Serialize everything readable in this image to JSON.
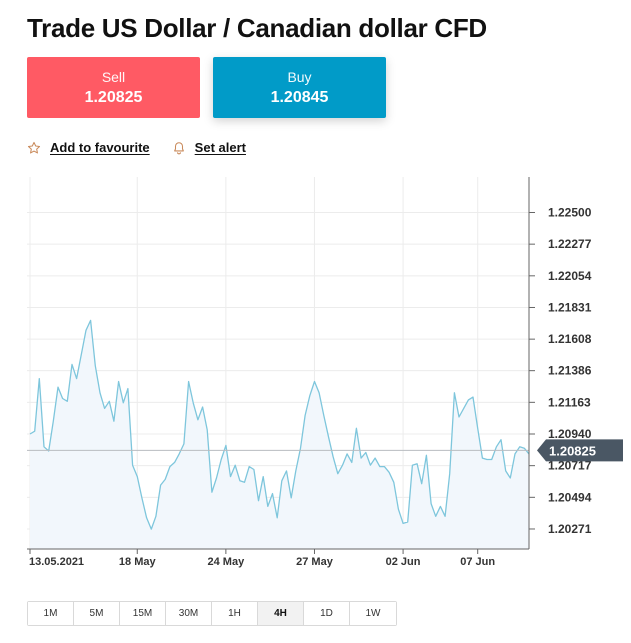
{
  "header": {
    "title": "Trade US Dollar / Canadian dollar CFD"
  },
  "trade": {
    "sell": {
      "label": "Sell",
      "price": "1.20825",
      "color": "#ff5a64"
    },
    "buy": {
      "label": "Buy",
      "price": "1.20845",
      "color": "#019bc8"
    }
  },
  "actions": {
    "favourite_label": "Add to favourite",
    "favourite_icon": "star-icon",
    "alert_label": "Set alert",
    "alert_icon": "bell-icon"
  },
  "timeframes": {
    "items": [
      "1M",
      "5M",
      "15M",
      "30M",
      "1H",
      "4H",
      "1D",
      "1W"
    ],
    "active": "4H"
  },
  "chart_data": {
    "type": "area",
    "line_color": "#7ec6dc",
    "fill_color": "#f2f7fc",
    "current_price": 1.20825,
    "current_price_label": "1.20825",
    "current_price_tag_color": "#4a5764",
    "ylim": [
      1.2013,
      1.2275
    ],
    "y_ticks": [
      1.225,
      1.22277,
      1.22054,
      1.21831,
      1.21608,
      1.21386,
      1.21163,
      1.2094,
      1.20717,
      1.20494,
      1.20271
    ],
    "y_tick_labels": [
      "1.22500",
      "1.22277",
      "1.22054",
      "1.21831",
      "1.21608",
      "1.21386",
      "1.21163",
      "1.20940",
      "1.20717",
      "1.20494",
      "1.20271"
    ],
    "x_tick_labels": [
      "13.05.2021",
      "18 May",
      "24 May",
      "27 May",
      "02 Jun",
      "07 Jun"
    ],
    "x_tick_index": [
      0,
      23,
      42,
      61,
      80,
      96
    ],
    "grid": true,
    "values": [
      1.2094,
      1.2096,
      1.2133,
      1.2085,
      1.2082,
      1.2103,
      1.2127,
      1.2119,
      1.2117,
      1.2143,
      1.2133,
      1.215,
      1.2167,
      1.2174,
      1.2142,
      1.2123,
      1.2112,
      1.2117,
      1.2103,
      1.2131,
      1.2116,
      1.2126,
      1.2072,
      1.2064,
      1.2049,
      1.2035,
      1.2027,
      1.2036,
      1.2058,
      1.2062,
      1.2071,
      1.2074,
      1.208,
      1.2087,
      1.2131,
      1.2116,
      1.2104,
      1.2113,
      1.2097,
      1.2053,
      1.2063,
      1.2076,
      1.2086,
      1.2064,
      1.2072,
      1.2061,
      1.206,
      1.2071,
      1.2069,
      1.2047,
      1.2064,
      1.2043,
      1.2052,
      1.2035,
      1.2061,
      1.2068,
      1.2049,
      1.2068,
      1.2084,
      1.2107,
      1.2121,
      1.2131,
      1.2123,
      1.2107,
      1.2092,
      1.2078,
      1.2066,
      1.2072,
      1.208,
      1.2074,
      1.2098,
      1.2077,
      1.2081,
      1.2072,
      1.2077,
      1.2071,
      1.2071,
      1.2067,
      1.206,
      1.2041,
      1.2031,
      1.2032,
      1.2072,
      1.2073,
      1.2059,
      1.2079,
      1.2045,
      1.2036,
      1.2043,
      1.2036,
      1.2066,
      1.2123,
      1.2106,
      1.2112,
      1.2118,
      1.212,
      1.2098,
      1.2077,
      1.2076,
      1.2076,
      1.2085,
      1.209,
      1.2068,
      1.2063,
      1.208,
      1.2085,
      1.2084,
      1.208
    ]
  }
}
